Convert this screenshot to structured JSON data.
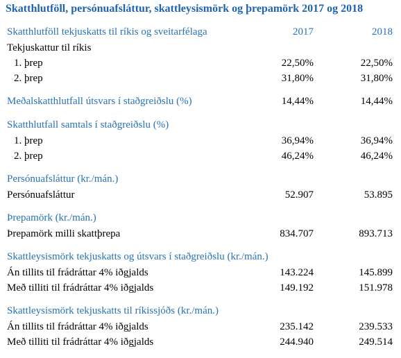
{
  "title": "Skatthlutföll, persónuafsláttur, skattleysismörk og þrepamörk 2017 og 2018",
  "columns": [
    "2017",
    "2018"
  ],
  "sections": [
    {
      "header": "Skatthlutföll tekjuskatts til ríkis og sveitarfélaga",
      "rows": [
        {
          "label": "Tekjuskattur til ríkis"
        }
      ],
      "steps": [
        {
          "label": "1. þrep",
          "values": [
            "22,50%",
            "22,50%"
          ]
        },
        {
          "label": "2. þrep",
          "values": [
            "31,80%",
            "31,80%"
          ]
        }
      ]
    },
    {
      "header": "Meðalskatthlutfall útsvars í staðgreiðslu (%)",
      "values": [
        "14,44%",
        "14,44%"
      ]
    },
    {
      "header": "Skatthlutfall samtals í staðgreiðslu (%)",
      "steps": [
        {
          "label": "1. þrep",
          "values": [
            "36,94%",
            "36,94%"
          ]
        },
        {
          "label": "2. þrep",
          "values": [
            "46,24%",
            "46,24%"
          ]
        }
      ]
    },
    {
      "header": "Persónuafsláttur (kr./mán.)",
      "rows": [
        {
          "label": "Persónuafsláttur",
          "values": [
            "52.907",
            "53.895"
          ]
        }
      ]
    },
    {
      "header": "Þrepamörk (kr./mán.)",
      "rows": [
        {
          "label": "Þrepamörk milli skattþrepa",
          "values": [
            "834.707",
            "893.713"
          ]
        }
      ]
    },
    {
      "header": "Skattleysismörk tekjuskatts og útsvars í staðgreiðslu (kr./mán.)",
      "rows": [
        {
          "label": "Án tillits til frádráttar 4% iðgjalds",
          "values": [
            "143.224",
            "145.899"
          ]
        },
        {
          "label": "Með tilliti til frádráttar 4% iðgjalds",
          "values": [
            "149.192",
            "151.978"
          ]
        }
      ]
    },
    {
      "header": "Skattleysismörk tekjuskatts til ríkissjóðs (kr./mán.)",
      "rows": [
        {
          "label": "Án tillits til frádráttar 4% iðgjalds",
          "values": [
            "235.142",
            "239.533"
          ]
        },
        {
          "label": "Með tilliti til frádráttar 4% iðgjalds",
          "values": [
            "244.940",
            "249.514"
          ]
        }
      ]
    }
  ]
}
